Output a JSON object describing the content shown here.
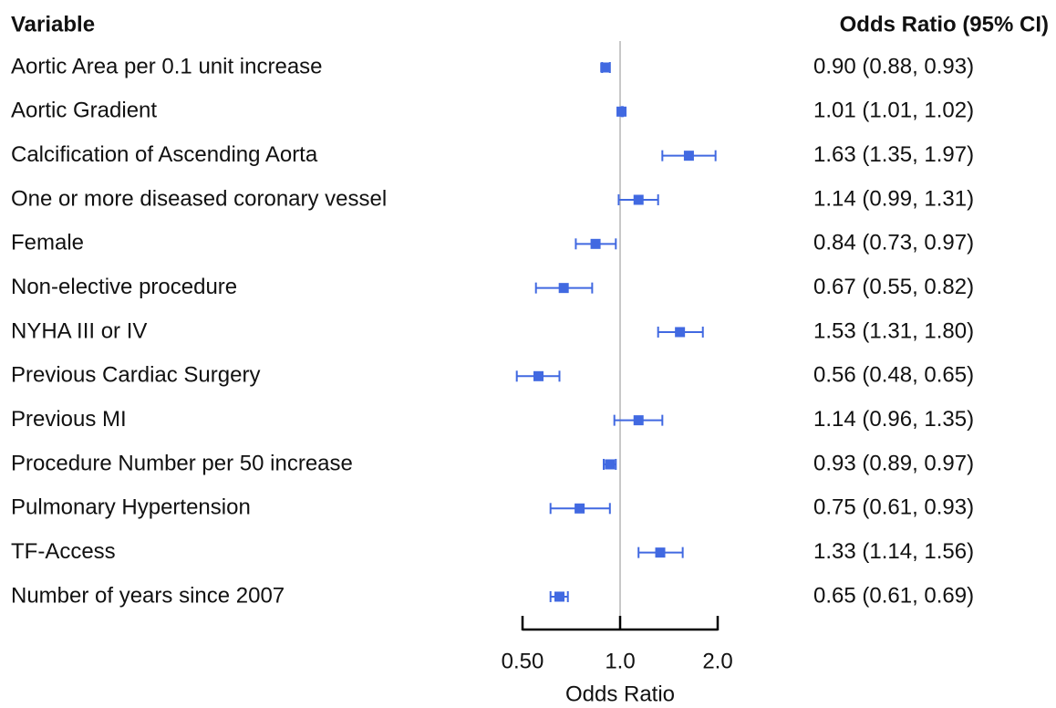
{
  "chart_data": {
    "type": "forest",
    "column_headers": [
      "Variable",
      "Odds Ratio (95% CI)"
    ],
    "categories": [
      "Aortic Area per 0.1 unit increase",
      "Aortic Gradient",
      "Calcification of Ascending Aorta",
      "One or more diseased coronary vessel",
      "Female",
      "Non-elective procedure",
      "NYHA III or IV",
      "Previous Cardiac Surgery",
      "Previous MI",
      "Procedure Number per 50 increase",
      "Pulmonary Hypertension",
      "TF-Access",
      "Number of years since 2007"
    ],
    "values": [
      0.9,
      1.01,
      1.63,
      1.14,
      0.84,
      0.67,
      1.53,
      0.56,
      1.14,
      0.93,
      0.75,
      1.33,
      0.65
    ],
    "lower": [
      0.88,
      1.01,
      1.35,
      0.99,
      0.73,
      0.55,
      1.31,
      0.48,
      0.96,
      0.89,
      0.61,
      1.14,
      0.61
    ],
    "upper": [
      0.93,
      1.02,
      1.97,
      1.31,
      0.97,
      0.82,
      1.8,
      0.65,
      1.35,
      0.97,
      0.93,
      1.56,
      0.69
    ],
    "value_labels": [
      "0.90 (0.88, 0.93)",
      "1.01 (1.01, 1.02)",
      "1.63 (1.35, 1.97)",
      "1.14 (0.99, 1.31)",
      "0.84 (0.73, 0.97)",
      "0.67 (0.55, 0.82)",
      "1.53 (1.31, 1.80)",
      "0.56 (0.48, 0.65)",
      "1.14 (0.96, 1.35)",
      "0.93 (0.89, 0.97)",
      "0.75 (0.61, 0.93)",
      "1.33 (1.14, 1.56)",
      "0.65 (0.61, 0.69)"
    ],
    "xlabel": "Odds Ratio",
    "xscale": "log",
    "xlim": [
      0.5,
      2.0
    ],
    "xticks": [
      {
        "value": 0.5,
        "label": "0.50"
      },
      {
        "value": 1,
        "label": "1.0"
      },
      {
        "value": 2,
        "label": "2.0"
      }
    ],
    "reference_line": 1,
    "color": "#4169e1"
  }
}
